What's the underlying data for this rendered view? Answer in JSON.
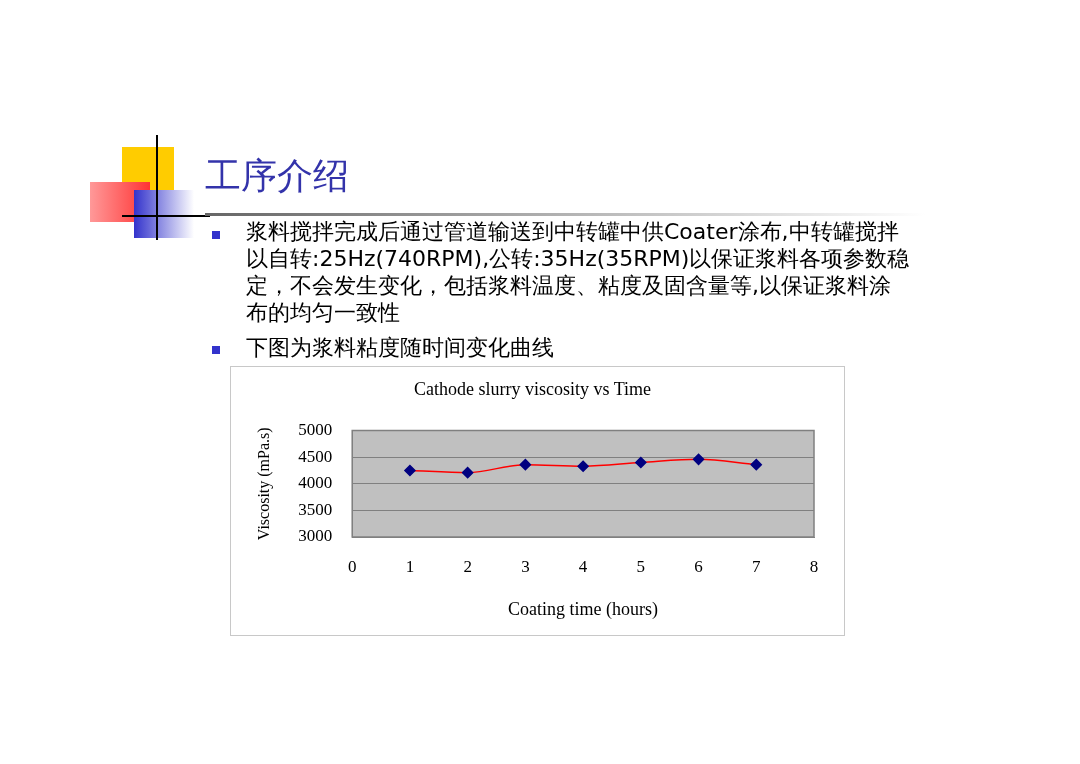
{
  "chart_data": {
    "type": "line",
    "title": "Cathode slurry viscosity vs Time",
    "xlabel": "Coating time (hours)",
    "ylabel": "Viscosity (mPa.s)",
    "annotations": [
      "工序介绍",
      "浆料搅拌完成后通过管道输送到中转罐中供Coater涂布,中转罐搅拌以自转:25Hz(740RPM),公转:35Hz(35RPM)以保证浆料各项参数稳定，不会发生变化，包括浆料温度、粘度及固含量等,以保证浆料涂布的均匀一致性",
      "下图为浆料粘度随时间变化曲线"
    ],
    "x": [
      1,
      2,
      3,
      4,
      5,
      6,
      7
    ],
    "series": [
      {
        "color": "#ff0000",
        "colors": [
          "#000080",
          "#000080",
          "#000080",
          "#000080",
          "#000080",
          "#000080",
          "#000080"
        ],
        "values": [
          4250,
          4210,
          4360,
          4330,
          4400,
          4460,
          4360
        ]
      }
    ],
    "xlim": [
      0,
      8
    ],
    "xticks": [
      0,
      1,
      2,
      3,
      4,
      5,
      6,
      7,
      8
    ],
    "ylim": [
      3000,
      5000
    ],
    "yticks": [
      3000,
      3500,
      4000,
      4500,
      5000
    ],
    "grid": "y",
    "legend": false,
    "marker": "diamond",
    "line_style": "solid"
  }
}
